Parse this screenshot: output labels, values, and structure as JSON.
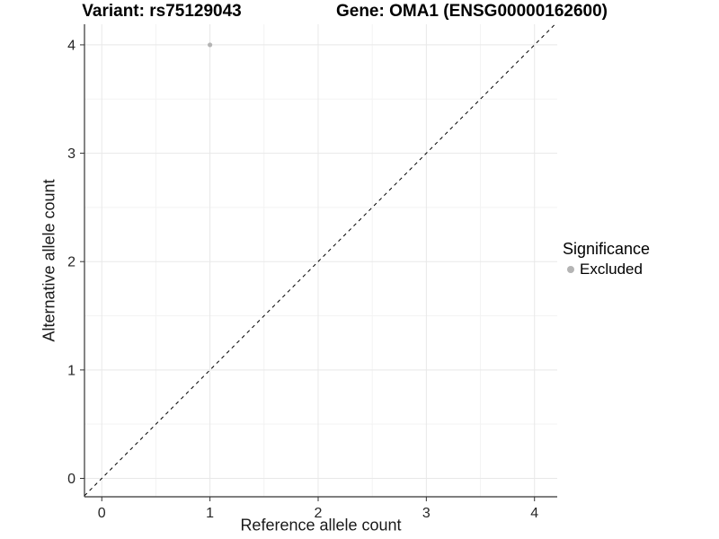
{
  "chart_data": {
    "type": "scatter",
    "titles": {
      "left": "Variant: rs75129043",
      "right": "Gene: OMA1 (ENSG00000162600)"
    },
    "xlabel": "Reference allele count",
    "ylabel": "Alternative allele count",
    "xticks": [
      0,
      1,
      2,
      3,
      4
    ],
    "yticks": [
      0,
      1,
      2,
      3,
      4
    ],
    "xlim": [
      -0.16,
      4.21
    ],
    "ylim": [
      -0.17,
      4.19
    ],
    "grid": "major and minor, light gray on white",
    "legend_position": "right",
    "legend": {
      "title": "Significance",
      "entries": [
        {
          "label": "Excluded",
          "color": "#b4b4b4"
        }
      ]
    },
    "series": [
      {
        "name": "Excluded",
        "color": "#b4b4b4",
        "points": [
          {
            "x": 1,
            "y": 4
          }
        ]
      }
    ],
    "reference_line": {
      "type": "identity",
      "style": "dashed",
      "color": "#000000"
    },
    "style": {
      "grid_major_color": "#e8e8e8",
      "grid_minor_color": "#f3f3f3",
      "axis_color": "#333333",
      "tick_label_color": "#262626",
      "point_radius": 2.6,
      "tick_label_size": 16
    }
  }
}
